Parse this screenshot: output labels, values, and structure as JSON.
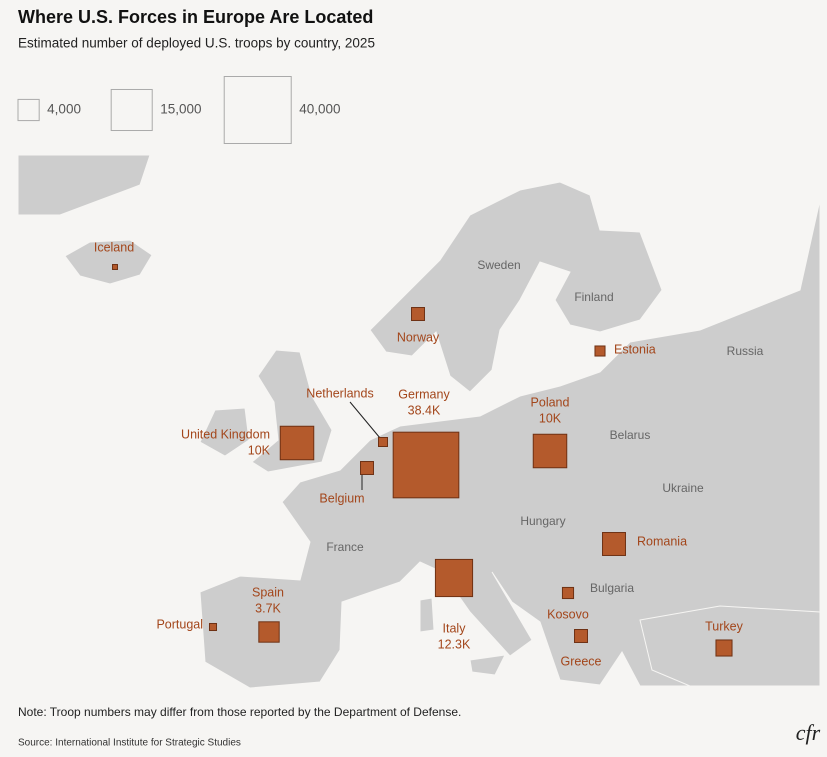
{
  "chart_data": {
    "type": "map",
    "title": "Where U.S. Forces in Europe Are Located",
    "subtitle": "Estimated number of deployed U.S. troops by country, 2025",
    "legend": [
      {
        "value": 4000,
        "label": "4,000"
      },
      {
        "value": 15000,
        "label": "15,000"
      },
      {
        "value": 40000,
        "label": "40,000"
      }
    ],
    "categories": [
      "Iceland",
      "Norway",
      "Estonia",
      "United Kingdom",
      "Netherlands",
      "Belgium",
      "Germany",
      "Poland",
      "Romania",
      "Italy",
      "Spain",
      "Portugal",
      "Kosovo",
      "Greece",
      "Turkey"
    ],
    "values": [
      220,
      1500,
      900,
      10000,
      720,
      1500,
      38400,
      10000,
      4700,
      12300,
      3700,
      440,
      1100,
      1500,
      2300
    ],
    "value_labels": [
      null,
      null,
      null,
      "10K",
      null,
      null,
      "38.4K",
      "10K",
      null,
      "12.3K",
      "3.7K",
      null,
      null,
      null,
      null
    ],
    "color": "#b45a2c",
    "map_labels": [
      "Sweden",
      "Finland",
      "Russia",
      "Belarus",
      "Ukraine",
      "Hungary",
      "France",
      "Bulgaria"
    ]
  },
  "note": "Note: Troop numbers may differ from those reported by the Department of Defense.",
  "source": "Source: International Institute for Strategic Studies",
  "logo": "cfr"
}
